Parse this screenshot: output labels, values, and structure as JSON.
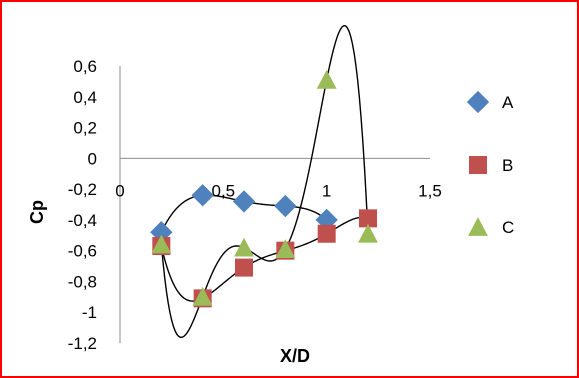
{
  "chart_data": {
    "type": "scatter",
    "title": "",
    "xlabel": "X/D",
    "ylabel": "Cp",
    "xlim": [
      0,
      1.5
    ],
    "ylim": [
      -1.2,
      0.6
    ],
    "x_ticks": [
      0,
      0.5,
      1,
      1.5
    ],
    "x_tick_labels": [
      "0",
      "0,5",
      "1",
      "1,5"
    ],
    "y_ticks": [
      0.6,
      0.4,
      0.2,
      0,
      -0.2,
      -0.4,
      -0.6,
      -0.8,
      -1,
      -1.2
    ],
    "y_tick_labels": [
      "0,6",
      "0,4",
      "0,2",
      "0",
      "-0,2",
      "-0,4",
      "-0,6",
      "-0,8",
      "-1",
      "-1,2"
    ],
    "grid": false,
    "legend_position": "right",
    "series": [
      {
        "name": "A",
        "marker": "diamond",
        "color": "#4f81bd",
        "x": [
          0.2,
          0.4,
          0.6,
          0.8,
          1.0
        ],
        "y": [
          -0.48,
          -0.24,
          -0.28,
          -0.31,
          -0.4
        ],
        "trendline": "polynomial"
      },
      {
        "name": "B",
        "marker": "square",
        "color": "#c0504d",
        "x": [
          0.2,
          0.4,
          0.6,
          0.8,
          1.0,
          1.2
        ],
        "y": [
          -0.57,
          -0.91,
          -0.71,
          -0.6,
          -0.49,
          -0.39
        ],
        "trendline": "polynomial"
      },
      {
        "name": "C",
        "marker": "triangle",
        "color": "#9bbb59",
        "x": [
          0.2,
          0.4,
          0.6,
          0.8,
          1.0,
          1.2
        ],
        "y": [
          -0.56,
          -0.9,
          -0.58,
          -0.59,
          0.51,
          -0.49
        ],
        "trendline": "polynomial"
      }
    ]
  }
}
